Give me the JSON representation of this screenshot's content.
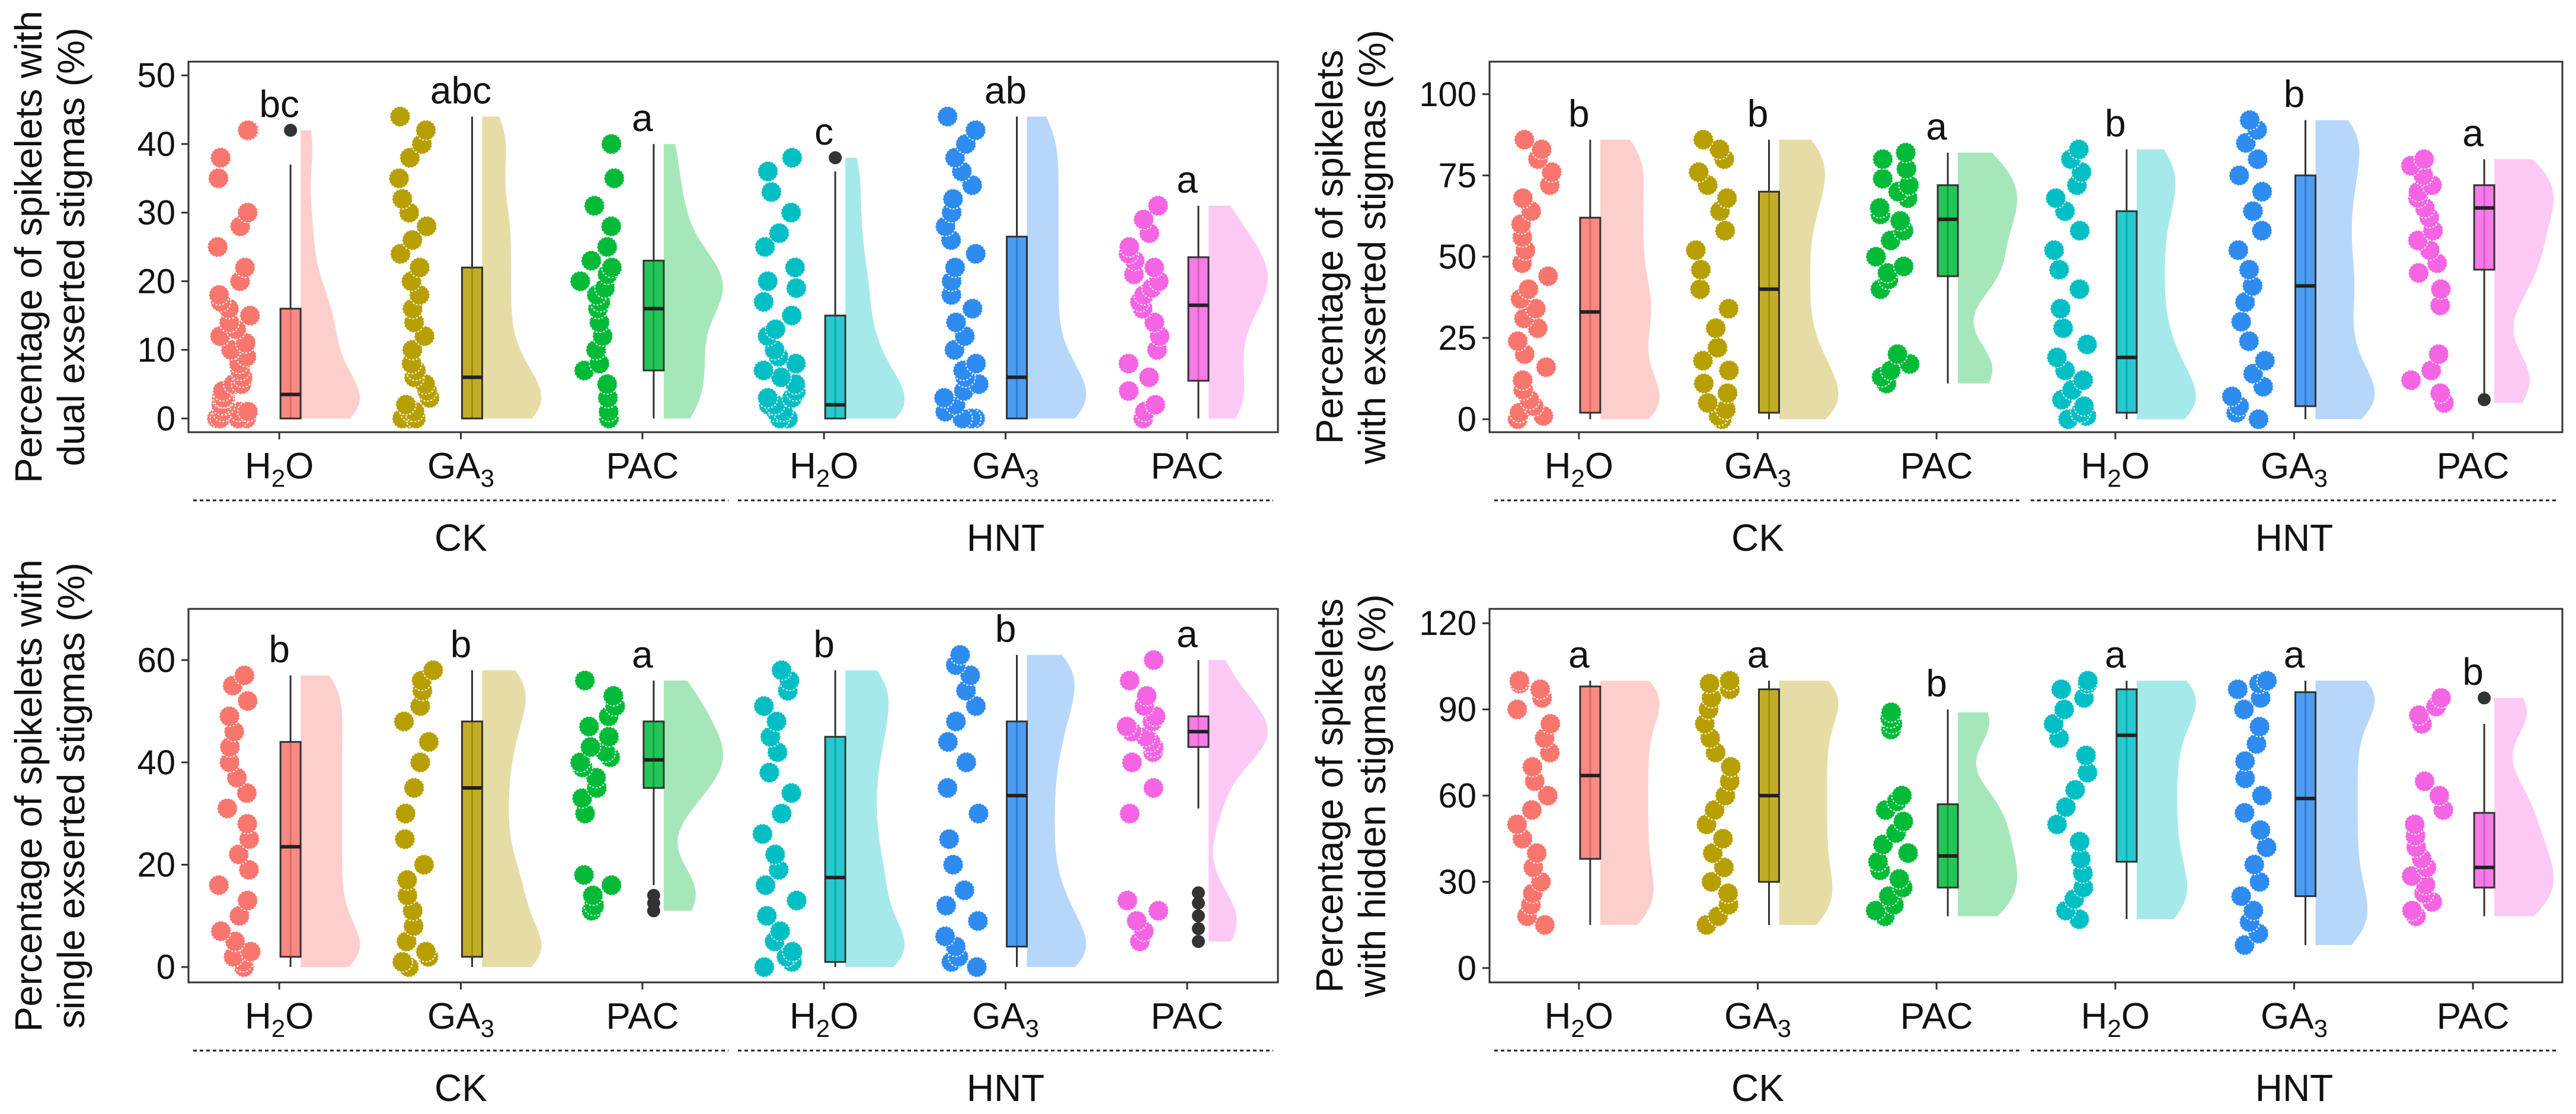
{
  "colors": {
    "H2O": "#F8766D",
    "GA3": "#B79F00",
    "PAC": "#00BA38",
    "H2O_HNT": "#00BFC4",
    "GA3_HNT": "#2E8BF0",
    "PAC_HNT": "#F564E3",
    "axis": "#333333"
  },
  "groups": [
    {
      "label": "CK"
    },
    {
      "label": "HNT"
    }
  ],
  "chart_data": [
    {
      "type": "raincloud",
      "ylabel_lines": [
        "Percentage of spikelets with",
        "dual exserted stigmas (%)"
      ],
      "ylim": [
        -2,
        52
      ],
      "yticks": [
        0,
        10,
        20,
        30,
        40,
        50
      ],
      "categories": [
        {
          "name": "H2O",
          "label": "H2O",
          "group": "CK",
          "sig": "bc",
          "min": 0,
          "q1": 0,
          "median": 3.5,
          "q3": 16,
          "max": 37,
          "outliers": [
            42
          ],
          "points": [
            0,
            0,
            0,
            0,
            1,
            1,
            1,
            2,
            2,
            3,
            3,
            3,
            4,
            5,
            5,
            6,
            7,
            8,
            9,
            10,
            11,
            12,
            13,
            14,
            15,
            16,
            17,
            18,
            20,
            22,
            25,
            28,
            30,
            35,
            38,
            42,
            42
          ]
        },
        {
          "name": "GA3",
          "label": "GA3",
          "group": "CK",
          "sig": "abc",
          "min": 0,
          "q1": 0,
          "median": 6,
          "q3": 22,
          "max": 44,
          "outliers": [],
          "points": [
            0,
            0,
            0,
            1,
            1,
            2,
            3,
            4,
            5,
            6,
            7,
            8,
            10,
            12,
            14,
            16,
            18,
            20,
            22,
            24,
            26,
            28,
            30,
            32,
            35,
            38,
            40,
            42,
            44
          ]
        },
        {
          "name": "PAC",
          "label": "PAC",
          "group": "CK",
          "sig": "a",
          "min": 0,
          "q1": 7,
          "median": 16,
          "q3": 23,
          "max": 40,
          "outliers": [],
          "points": [
            0,
            1,
            3,
            5,
            7,
            8,
            10,
            12,
            14,
            16,
            17,
            18,
            19,
            20,
            21,
            22,
            23,
            25,
            28,
            31,
            35,
            40
          ]
        },
        {
          "name": "H2O_HNT",
          "label": "H2O",
          "group": "HNT",
          "sig": "c",
          "min": 0,
          "q1": 0,
          "median": 2,
          "q3": 15,
          "max": 36,
          "outliers": [
            38
          ],
          "points": [
            0,
            0,
            0,
            0,
            1,
            1,
            2,
            2,
            3,
            3,
            4,
            5,
            6,
            7,
            8,
            9,
            10,
            12,
            13,
            15,
            17,
            19,
            20,
            22,
            25,
            27,
            30,
            33,
            36,
            38
          ]
        },
        {
          "name": "GA3_HNT",
          "label": "GA3",
          "group": "HNT",
          "sig": "ab",
          "min": 0,
          "q1": 0,
          "median": 6,
          "q3": 26.5,
          "max": 44,
          "outliers": [],
          "points": [
            0,
            0,
            0,
            1,
            2,
            3,
            4,
            5,
            6,
            7,
            8,
            10,
            12,
            14,
            16,
            18,
            20,
            22,
            24,
            26,
            28,
            30,
            32,
            34,
            36,
            38,
            40,
            42,
            44
          ]
        },
        {
          "name": "PAC_HNT",
          "label": "PAC",
          "group": "HNT",
          "sig": "a",
          "min": 0,
          "q1": 5.5,
          "median": 16.5,
          "q3": 23.5,
          "max": 31,
          "outliers": [],
          "points": [
            0,
            1,
            2,
            4,
            6,
            8,
            10,
            12,
            14,
            16,
            17,
            18,
            19,
            20,
            21,
            22,
            23,
            24,
            25,
            27,
            29,
            31
          ]
        }
      ]
    },
    {
      "type": "raincloud",
      "ylabel_lines": [
        "Percentage of spikelets",
        "with exserted stigmas (%)"
      ],
      "ylim": [
        -4,
        110
      ],
      "yticks": [
        0,
        25,
        50,
        75,
        100
      ],
      "categories": [
        {
          "name": "H2O",
          "label": "H2O",
          "group": "CK",
          "sig": "b",
          "min": 0,
          "q1": 2,
          "median": 33,
          "q3": 62,
          "max": 86,
          "outliers": [],
          "points": [
            0,
            1,
            2,
            4,
            6,
            9,
            12,
            16,
            20,
            24,
            28,
            31,
            34,
            37,
            40,
            44,
            48,
            52,
            56,
            60,
            64,
            68,
            72,
            76,
            80,
            83,
            86
          ]
        },
        {
          "name": "GA3",
          "label": "GA3",
          "group": "CK",
          "sig": "b",
          "min": 0,
          "q1": 2,
          "median": 40,
          "q3": 70,
          "max": 86,
          "outliers": [],
          "points": [
            0,
            1,
            3,
            5,
            8,
            11,
            15,
            18,
            22,
            28,
            34,
            40,
            46,
            52,
            58,
            64,
            68,
            72,
            76,
            80,
            83,
            86
          ]
        },
        {
          "name": "PAC",
          "label": "PAC",
          "group": "CK",
          "sig": "a",
          "min": 11,
          "q1": 44,
          "median": 61.5,
          "q3": 72,
          "max": 82,
          "outliers": [],
          "points": [
            11,
            13,
            15,
            17,
            20,
            40,
            43,
            45,
            47,
            50,
            55,
            58,
            61,
            63,
            65,
            68,
            70,
            72,
            74,
            77,
            80,
            82
          ]
        },
        {
          "name": "H2O_HNT",
          "label": "H2O",
          "group": "HNT",
          "sig": "b",
          "min": 0,
          "q1": 2,
          "median": 19,
          "q3": 64,
          "max": 83,
          "outliers": [],
          "points": [
            0,
            1,
            2,
            4,
            6,
            9,
            12,
            15,
            19,
            23,
            28,
            34,
            40,
            46,
            52,
            58,
            64,
            68,
            72,
            76,
            80,
            83
          ]
        },
        {
          "name": "GA3_HNT",
          "label": "GA3",
          "group": "HNT",
          "sig": "b",
          "min": 0,
          "q1": 4,
          "median": 41,
          "q3": 75,
          "max": 92,
          "outliers": [],
          "points": [
            0,
            2,
            4,
            7,
            10,
            14,
            18,
            24,
            30,
            36,
            41,
            46,
            52,
            58,
            64,
            70,
            75,
            80,
            85,
            89,
            92
          ]
        },
        {
          "name": "PAC_HNT",
          "label": "PAC",
          "group": "HNT",
          "sig": "a",
          "min": 8,
          "q1": 46,
          "median": 65,
          "q3": 72,
          "max": 80,
          "outliers": [
            6
          ],
          "points": [
            5,
            8,
            12,
            15,
            20,
            35,
            40,
            45,
            48,
            52,
            55,
            58,
            62,
            65,
            68,
            70,
            72,
            75,
            78,
            80
          ]
        }
      ]
    },
    {
      "type": "raincloud",
      "ylabel_lines": [
        "Percentage of spikelets with",
        "single exserted stigmas (%)"
      ],
      "ylim": [
        -3,
        70
      ],
      "yticks": [
        0,
        20,
        40,
        60
      ],
      "categories": [
        {
          "name": "H2O",
          "label": "H2O",
          "group": "CK",
          "sig": "b",
          "min": 0,
          "q1": 2,
          "median": 23.5,
          "q3": 44,
          "max": 57,
          "outliers": [],
          "points": [
            0,
            1,
            2,
            3,
            5,
            7,
            10,
            13,
            16,
            19,
            22,
            25,
            28,
            31,
            34,
            37,
            40,
            43,
            46,
            49,
            52,
            55,
            57
          ]
        },
        {
          "name": "GA3",
          "label": "GA3",
          "group": "CK",
          "sig": "b",
          "min": 0,
          "q1": 2,
          "median": 35,
          "q3": 48,
          "max": 58,
          "outliers": [],
          "points": [
            0,
            1,
            2,
            3,
            5,
            8,
            11,
            14,
            17,
            20,
            25,
            30,
            35,
            40,
            44,
            48,
            51,
            54,
            56,
            58
          ]
        },
        {
          "name": "PAC",
          "label": "PAC",
          "group": "CK",
          "sig": "a",
          "min": 16,
          "q1": 35,
          "median": 40.5,
          "q3": 48,
          "max": 56,
          "outliers": [
            11,
            12.5,
            14
          ],
          "points": [
            11,
            12,
            14,
            16,
            18,
            30,
            33,
            35,
            37,
            39,
            40,
            41,
            42,
            43,
            45,
            47,
            49,
            51,
            53,
            56
          ]
        },
        {
          "name": "H2O_HNT",
          "label": "H2O",
          "group": "HNT",
          "sig": "b",
          "min": 0,
          "q1": 1,
          "median": 17.5,
          "q3": 45,
          "max": 58,
          "outliers": [],
          "points": [
            0,
            1,
            2,
            3,
            5,
            7,
            10,
            13,
            16,
            19,
            22,
            26,
            30,
            34,
            38,
            42,
            45,
            48,
            51,
            54,
            56,
            58
          ]
        },
        {
          "name": "GA3_HNT",
          "label": "GA3",
          "group": "HNT",
          "sig": "b",
          "min": 0,
          "q1": 4,
          "median": 33.5,
          "q3": 48,
          "max": 61,
          "outliers": [],
          "points": [
            0,
            1,
            2,
            4,
            6,
            9,
            12,
            15,
            20,
            25,
            30,
            35,
            40,
            44,
            48,
            51,
            54,
            57,
            59,
            61
          ]
        },
        {
          "name": "PAC_HNT",
          "label": "PAC",
          "group": "HNT",
          "sig": "a",
          "min": 31,
          "q1": 43,
          "median": 46,
          "q3": 49,
          "max": 60,
          "outliers": [
            5,
            7.5,
            10,
            12.5,
            14.5
          ],
          "points": [
            5,
            7,
            9,
            11,
            13,
            30,
            35,
            40,
            42,
            43,
            44,
            45,
            46,
            47,
            48,
            49,
            51,
            53,
            56,
            60
          ]
        }
      ]
    },
    {
      "type": "raincloud",
      "ylabel_lines": [
        "Percentage of spikelets",
        "with hidden stigmas (%)"
      ],
      "ylim": [
        -5,
        125
      ],
      "yticks": [
        0,
        30,
        60,
        90,
        120
      ],
      "categories": [
        {
          "name": "H2O",
          "label": "H2O",
          "group": "CK",
          "sig": "a",
          "min": 15,
          "q1": 38,
          "median": 67,
          "q3": 98,
          "max": 100,
          "outliers": [],
          "points": [
            15,
            18,
            22,
            26,
            30,
            35,
            40,
            45,
            50,
            55,
            60,
            65,
            70,
            75,
            80,
            85,
            90,
            94,
            97,
            99,
            100
          ]
        },
        {
          "name": "GA3",
          "label": "GA3",
          "group": "CK",
          "sig": "a",
          "min": 15,
          "q1": 30,
          "median": 60,
          "q3": 97,
          "max": 100,
          "outliers": [],
          "points": [
            15,
            18,
            22,
            26,
            30,
            35,
            40,
            45,
            50,
            55,
            60,
            65,
            70,
            75,
            80,
            85,
            90,
            94,
            97,
            99,
            100
          ]
        },
        {
          "name": "PAC",
          "label": "PAC",
          "group": "CK",
          "sig": "b",
          "min": 18,
          "q1": 28,
          "median": 39,
          "q3": 57,
          "max": 90,
          "outliers": [],
          "points": [
            18,
            20,
            22,
            25,
            28,
            31,
            34,
            37,
            40,
            43,
            47,
            51,
            55,
            58,
            60,
            83,
            85,
            87,
            89
          ]
        },
        {
          "name": "H2O_HNT",
          "label": "H2O",
          "group": "HNT",
          "sig": "a",
          "min": 17,
          "q1": 37,
          "median": 81,
          "q3": 97,
          "max": 100,
          "outliers": [],
          "points": [
            17,
            20,
            24,
            28,
            33,
            38,
            44,
            50,
            56,
            62,
            68,
            74,
            80,
            85,
            90,
            94,
            97,
            99,
            100
          ]
        },
        {
          "name": "GA3_HNT",
          "label": "GA3",
          "group": "HNT",
          "sig": "a",
          "min": 8,
          "q1": 25,
          "median": 59,
          "q3": 96,
          "max": 100,
          "outliers": [],
          "points": [
            8,
            12,
            16,
            20,
            25,
            30,
            36,
            42,
            48,
            54,
            60,
            66,
            72,
            78,
            84,
            90,
            94,
            97,
            99,
            100
          ]
        },
        {
          "name": "PAC_HNT",
          "label": "PAC",
          "group": "HNT",
          "sig": "b",
          "min": 18,
          "q1": 28,
          "median": 35,
          "q3": 54,
          "max": 85,
          "outliers": [
            94
          ],
          "points": [
            18,
            20,
            23,
            26,
            29,
            32,
            35,
            38,
            42,
            46,
            50,
            55,
            60,
            65,
            85,
            88,
            91,
            94
          ]
        }
      ]
    }
  ]
}
